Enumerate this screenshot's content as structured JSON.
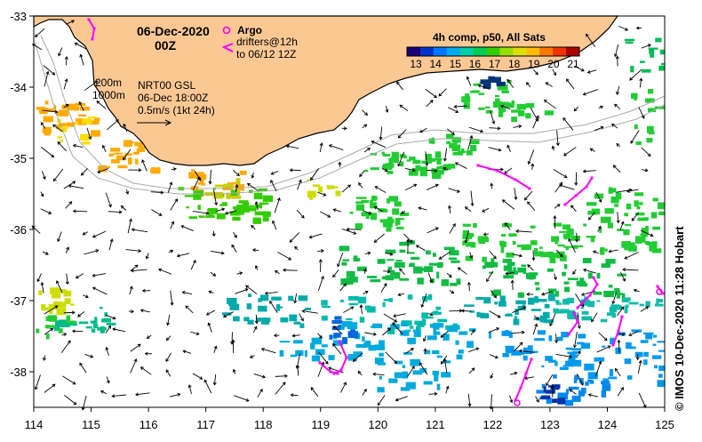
{
  "map": {
    "date": "06-Dec-2020",
    "hour": "00Z",
    "product": "NRT00 GSL",
    "analysis_time": "06-Dec 18:00Z",
    "vector_scale": "0.5m/s (1kt 24h)",
    "isobaths": [
      "200m",
      "1000m"
    ],
    "argo_label": "Argo",
    "drifters_label": "drifters@12h",
    "drifters_to": "to 06/12 12Z",
    "credit": "© IMOS 10-Dec-2020 11:28 Hobart",
    "lon_ticks": [
      "114",
      "115",
      "116",
      "117",
      "118",
      "119",
      "120",
      "121",
      "122",
      "123",
      "124",
      "125"
    ],
    "lat_ticks": [
      "-33",
      "-34",
      "-35",
      "-36",
      "-37",
      "-38"
    ],
    "extent": {
      "lon_min": 114,
      "lon_max": 125,
      "lat_min": -38.5,
      "lat_max": -33
    },
    "colors": {
      "land": "#fbc894",
      "coast": "#000000",
      "argo": "#ee00ee",
      "drifter": "#ff00ff",
      "isobath": "#aaaaaa"
    }
  },
  "colorbar": {
    "title": "4h comp, p50, All Sats",
    "ticks": [
      "13",
      "14",
      "15",
      "16",
      "17",
      "18",
      "19",
      "20",
      "21"
    ],
    "colors": [
      "#1a0077",
      "#0033cc",
      "#0077ff",
      "#00aaee",
      "#00ccaa",
      "#00cc55",
      "#33cc00",
      "#99dd00",
      "#dddd00",
      "#ffbb00",
      "#ff7700",
      "#ee3300",
      "#aa0000"
    ]
  }
}
